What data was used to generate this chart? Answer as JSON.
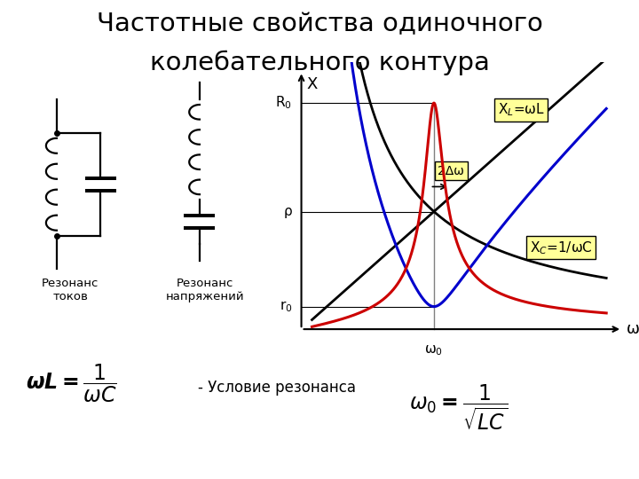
{
  "title_line1": "Частотные свойства одиночного",
  "title_line2": "колебательного контура",
  "title_fontsize": 21,
  "bg_color": "#ffffff",
  "omega0": 1.0,
  "rho": 0.52,
  "r0": 0.1,
  "R0": 1.0,
  "label_XL": "X$_L$=ωL",
  "label_XC": "X$_C$=1/ωC",
  "label_2Dw": "2Δω",
  "label_rho": "ρ",
  "label_r0": "r$_0$",
  "label_R0": "R$_0$",
  "label_X": "X",
  "label_omega": "ω",
  "label_omega0": "ω$_0$",
  "color_blue": "#0000cc",
  "color_black": "#000000",
  "color_red": "#cc0000",
  "box_color": "#ffff99",
  "resonance_label": "Резонанс\nтоков",
  "voltage_label": "Резонанс\nнапряжений",
  "formula_condition": "- Условие резонанса"
}
